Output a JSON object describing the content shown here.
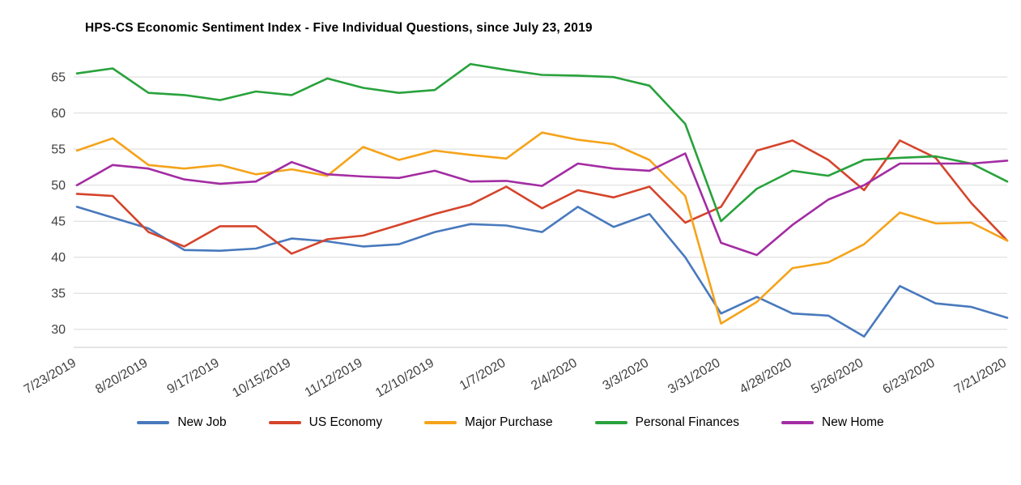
{
  "chart_data": {
    "type": "line",
    "title": "HPS-CS Economic Sentiment Index - Five Individual Questions, since July 23, 2019",
    "xlabel": "",
    "ylabel": "",
    "ylim": [
      27.5,
      68.5
    ],
    "yticks": [
      30,
      35,
      40,
      45,
      50,
      55,
      60,
      65
    ],
    "grid": "horizontal",
    "legend_position": "bottom",
    "n_points": 27,
    "points_per_tick": 2,
    "tick_labels": [
      "7/23/2019",
      "8/20/2019",
      "9/17/2019",
      "10/15/2019",
      "11/12/2019",
      "12/10/2019",
      "1/7/2020",
      "2/4/2020",
      "3/3/2020",
      "3/31/2020",
      "4/28/2020",
      "5/26/2020",
      "6/23/2020",
      "7/21/2020"
    ],
    "series": [
      {
        "name": "New Job",
        "color": "#4879BD",
        "values": [
          47.0,
          45.5,
          44.0,
          41.0,
          40.9,
          41.2,
          42.6,
          42.2,
          41.5,
          41.8,
          43.5,
          44.6,
          44.4,
          43.5,
          47.0,
          44.2,
          46.0,
          40.0,
          32.2,
          34.5,
          32.2,
          31.9,
          29.0,
          36.0,
          33.6,
          33.1,
          31.6
        ]
      },
      {
        "name": "US Economy",
        "color": "#D5442B",
        "values": [
          48.8,
          48.5,
          43.5,
          41.5,
          44.3,
          44.3,
          40.5,
          42.5,
          43.0,
          44.5,
          46.0,
          47.3,
          49.8,
          46.8,
          49.3,
          48.3,
          49.8,
          44.8,
          47.0,
          54.8,
          56.2,
          53.5,
          49.3,
          56.2,
          53.8,
          47.5,
          42.3
        ]
      },
      {
        "name": "Major Purchase",
        "color": "#F5A31A",
        "values": [
          54.8,
          56.5,
          52.8,
          52.3,
          52.8,
          51.5,
          52.2,
          51.3,
          55.3,
          53.5,
          54.8,
          54.2,
          53.7,
          57.3,
          56.3,
          55.7,
          53.5,
          48.5,
          30.8,
          33.8,
          38.5,
          39.3,
          41.8,
          46.2,
          44.7,
          44.8,
          42.3
        ]
      },
      {
        "name": "Personal Finances",
        "color": "#28A23C",
        "values": [
          65.5,
          66.2,
          62.8,
          62.5,
          61.8,
          63.0,
          62.5,
          64.8,
          63.5,
          62.8,
          63.2,
          66.8,
          66.0,
          65.3,
          65.2,
          65.0,
          63.8,
          58.5,
          45.0,
          49.5,
          52.0,
          51.3,
          53.5,
          53.8,
          54.0,
          53.0,
          50.5
        ]
      },
      {
        "name": "New Home",
        "color": "#A32CA3",
        "values": [
          50.0,
          52.8,
          52.3,
          50.8,
          50.2,
          50.5,
          53.2,
          51.5,
          51.2,
          51.0,
          52.0,
          50.5,
          50.6,
          49.9,
          53.0,
          52.3,
          52.0,
          54.4,
          42.0,
          40.3,
          44.5,
          48.0,
          50.0,
          53.0,
          53.0,
          53.0,
          53.4
        ]
      }
    ],
    "style": {
      "grid_color": "#d9d9d9",
      "axis_text_color": "#404040",
      "background": "#ffffff",
      "line_width": 2.6,
      "tick_font_size": 15
    }
  }
}
